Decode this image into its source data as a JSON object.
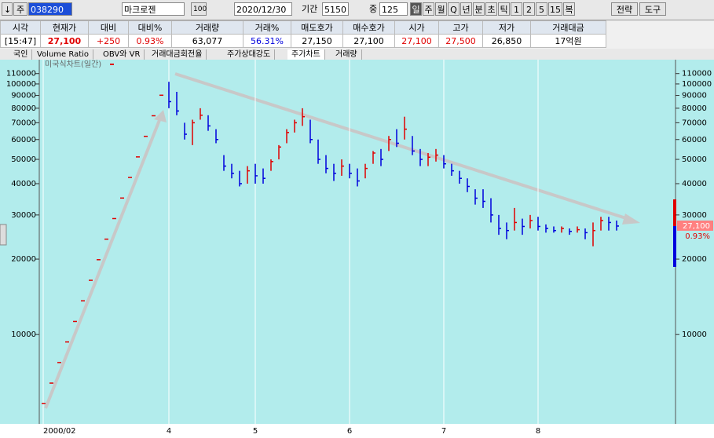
{
  "toolbar": {
    "arrow": "↓",
    "market": "주",
    "code": "038290",
    "name": "마크로젠",
    "ratio": "100",
    "date": "2020/12/30",
    "period_label": "기간",
    "period": "5150",
    "mid_label": "중",
    "mid": "125",
    "units": [
      "일",
      "주",
      "월",
      "Q",
      "년",
      "분",
      "초",
      "틱",
      "1",
      "2",
      "5",
      "15",
      "복"
    ],
    "buttons": [
      "전략",
      "도구"
    ]
  },
  "quote": {
    "headers": [
      "시각",
      "현재가",
      "대비",
      "대비%",
      "거래량",
      "거래%",
      "매도호가",
      "매수호가",
      "시가",
      "고가",
      "저가",
      "거래대금"
    ],
    "values": [
      "[15:47]",
      "27,100",
      "+250",
      "0.93%",
      "63,077",
      "56.31%",
      "27,150",
      "27,100",
      "27,100",
      "27,500",
      "26,850",
      "17억원"
    ]
  },
  "tabs": [
    "국인",
    "Volume Ratio",
    "OBV와 VR",
    "거래대금회전율",
    "주가상대강도",
    "주가차트",
    "거래량"
  ],
  "chart_data": {
    "type": "hlc",
    "title": "미국식차트(일간)",
    "log_scale": true,
    "up_color": "#e00000",
    "down_color": "#0000dd",
    "categories": [
      "2000/02",
      null,
      null,
      null,
      null,
      null,
      null,
      null,
      null,
      null,
      null,
      null,
      null,
      null,
      null,
      null,
      "4",
      null,
      null,
      null,
      null,
      null,
      null,
      null,
      null,
      null,
      null,
      "5",
      null,
      null,
      null,
      null,
      null,
      null,
      null,
      null,
      null,
      null,
      null,
      "6",
      null,
      null,
      null,
      null,
      null,
      null,
      null,
      null,
      null,
      null,
      null,
      "7",
      null,
      null,
      null,
      null,
      null,
      null,
      null,
      null,
      null,
      null,
      null,
      "8",
      null,
      null,
      null,
      null,
      null,
      null,
      null,
      null,
      null,
      null
    ],
    "high": [
      5300,
      6400,
      7730,
      9340,
      11280,
      13630,
      16460,
      19890,
      24020,
      29020,
      35050,
      42340,
      51150,
      61790,
      74640,
      90160,
      102000,
      93000,
      70000,
      72000,
      80000,
      75000,
      66000,
      52000,
      48000,
      45000,
      47000,
      48000,
      46000,
      50000,
      57000,
      66000,
      72000,
      80000,
      72000,
      60000,
      52000,
      48000,
      50000,
      48000,
      46000,
      48000,
      54000,
      55000,
      62000,
      66000,
      74000,
      62000,
      55000,
      53000,
      55000,
      52000,
      48000,
      45000,
      42000,
      38000,
      38000,
      35000,
      30000,
      28000,
      32000,
      29000,
      30000,
      29500,
      27500,
      27000,
      27000,
      26500,
      27000,
      26500,
      28000,
      29500,
      29500,
      28500
    ],
    "low": [
      5300,
      6400,
      7730,
      9340,
      11280,
      13630,
      16460,
      19890,
      24020,
      29020,
      35050,
      42340,
      51150,
      61790,
      74640,
      90160,
      80000,
      75000,
      60000,
      57000,
      72000,
      65000,
      58000,
      45000,
      42000,
      39000,
      40000,
      40000,
      40000,
      45000,
      50000,
      58000,
      64000,
      68000,
      58000,
      48000,
      44000,
      41000,
      43000,
      42000,
      39000,
      42000,
      48000,
      47000,
      54000,
      56000,
      60000,
      52000,
      47000,
      47000,
      49000,
      46000,
      43000,
      40000,
      37000,
      33000,
      32000,
      28000,
      25000,
      24000,
      26000,
      25000,
      26500,
      26000,
      25500,
      25500,
      25500,
      25000,
      25500,
      24000,
      22500,
      26000,
      26000,
      26000
    ],
    "close": [
      5300,
      6400,
      7730,
      9340,
      11280,
      13630,
      16460,
      19890,
      24020,
      29020,
      35050,
      42340,
      51150,
      61790,
      74640,
      90160,
      85000,
      78000,
      63000,
      70000,
      75000,
      68000,
      60000,
      47000,
      44000,
      40000,
      45000,
      43000,
      42000,
      49000,
      56000,
      64000,
      70000,
      74000,
      60000,
      50000,
      46000,
      44000,
      47000,
      44000,
      41000,
      46000,
      53000,
      50000,
      60000,
      58000,
      66000,
      54000,
      50000,
      51000,
      52000,
      48000,
      45000,
      42000,
      39000,
      35000,
      34000,
      30000,
      26500,
      26000,
      28000,
      27000,
      28500,
      27000,
      26500,
      26000,
      26500,
      25800,
      26200,
      25500,
      26000,
      28500,
      28000,
      27100
    ],
    "ylim": [
      4400,
      125000
    ],
    "yticks": [
      10000,
      20000,
      30000,
      40000,
      50000,
      60000,
      70000,
      80000,
      90000,
      100000,
      110000
    ]
  }
}
